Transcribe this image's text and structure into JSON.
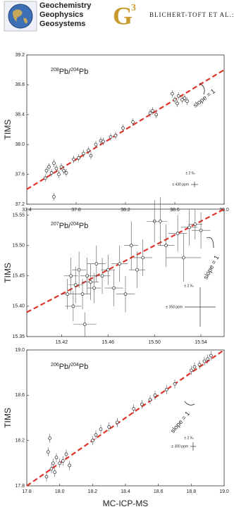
{
  "header": {
    "journal": [
      "Geochemistry",
      "Geophysics",
      "Geosystems"
    ],
    "logo_letter": "G",
    "logo_number": "3",
    "authors": "BLICHERT-TOFT ET AL.:"
  },
  "chart_data": [
    {
      "type": "scatter",
      "panel_label": [
        "208",
        "Pb/",
        "204",
        "Pb"
      ],
      "ylabel": "TIMS",
      "slope_label": "slope = 1",
      "reference_slope": 1,
      "line_color": "#e0342a",
      "marker_color": "#222",
      "x": [
        37.55,
        37.56,
        37.58,
        37.6,
        37.62,
        37.62,
        37.64,
        37.66,
        37.68,
        37.7,
        37.72,
        37.78,
        37.82,
        37.86,
        37.9,
        37.92,
        37.96,
        38.0,
        38.02,
        38.08,
        38.12,
        38.18,
        38.26,
        38.4,
        38.42,
        38.45,
        38.58,
        38.6,
        38.62,
        38.63,
        38.66,
        38.68,
        38.7
      ],
      "values": [
        37.55,
        37.65,
        37.7,
        37.62,
        37.75,
        37.3,
        37.68,
        37.6,
        37.7,
        37.65,
        37.62,
        37.8,
        37.82,
        37.88,
        37.92,
        37.85,
        38.0,
        38.05,
        38.04,
        38.1,
        38.12,
        38.22,
        38.3,
        38.42,
        38.45,
        38.4,
        38.68,
        38.6,
        38.55,
        38.65,
        38.6,
        38.62,
        38.58
      ],
      "xerr": 0.01,
      "yerr": 0.05,
      "key": {
        "permil": "± 2 ‰",
        "ppm": "± 430 ppm"
      },
      "xlim": [
        37.4,
        39.0
      ],
      "ylim": [
        37.2,
        39.2
      ],
      "xticks": [
        37.4,
        37.8,
        38.2,
        38.6,
        {
          "value": 39.0,
          "label": "39.0"
        }
      ],
      "yticks": [
        37.2,
        37.6,
        {
          "value": 38.0,
          "label": "38.0"
        },
        38.4,
        38.8,
        39.2
      ]
    },
    {
      "type": "scatter",
      "panel_label": [
        "207",
        "Pb/",
        "204",
        "Pb"
      ],
      "ylabel": "TIMS",
      "slope_label": "slope = 1",
      "reference_slope": 1,
      "line_color": "#e0342a",
      "marker_color": "#222",
      "x": [
        15.425,
        15.428,
        15.43,
        15.432,
        15.435,
        15.438,
        15.44,
        15.442,
        15.445,
        15.448,
        15.45,
        15.455,
        15.46,
        15.465,
        15.47,
        15.475,
        15.48,
        15.485,
        15.49,
        15.5,
        15.505,
        15.51,
        15.52,
        15.53,
        15.535,
        15.54,
        15.525
      ],
      "values": [
        15.42,
        15.45,
        15.4,
        15.435,
        15.46,
        15.42,
        15.37,
        15.45,
        15.44,
        15.43,
        15.47,
        15.45,
        15.46,
        15.43,
        15.47,
        15.42,
        15.5,
        15.46,
        15.48,
        15.54,
        15.54,
        15.5,
        15.52,
        15.53,
        15.535,
        15.525,
        15.48
      ],
      "xerr": [
        0.006,
        0.006,
        0.007,
        0.006,
        0.006,
        0.007,
        0.01,
        0.006,
        0.007,
        0.006,
        0.008,
        0.007,
        0.006,
        0.008,
        0.007,
        0.008,
        0.006,
        0.007,
        0.008,
        0.007,
        0.006,
        0.007,
        0.008,
        0.007,
        0.006,
        0.008,
        0.015
      ],
      "yerr": [
        0.025,
        0.03,
        0.025,
        0.03,
        0.03,
        0.025,
        0.02,
        0.03,
        0.03,
        0.025,
        0.03,
        0.03,
        0.025,
        0.03,
        0.03,
        0.03,
        0.04,
        0.03,
        0.03,
        0.035,
        0.04,
        0.035,
        0.03,
        0.03,
        0.025,
        0.03,
        0.04
      ],
      "key": {
        "permil": "± 2 ‰",
        "ppm": "± 350 ppm"
      },
      "xlim": [
        15.39,
        15.56
      ],
      "ylim": [
        15.35,
        15.56
      ],
      "xticks": [
        15.42,
        15.46,
        {
          "value": 15.5,
          "label": "15.50"
        },
        15.54
      ],
      "yticks": [
        15.35,
        {
          "value": 15.4,
          "label": "15.40"
        },
        15.45,
        {
          "value": 15.5,
          "label": "15.50"
        },
        15.55
      ]
    },
    {
      "type": "scatter",
      "panel_label": [
        "206",
        "Pb/",
        "204",
        "Pb"
      ],
      "ylabel": "TIMS",
      "xlabel": "MC-ICP-MS",
      "slope_label": "slope = 1",
      "reference_slope": 1,
      "line_color": "#e0342a",
      "marker_color": "#222",
      "x": [
        17.92,
        17.93,
        17.94,
        17.95,
        17.96,
        17.97,
        17.98,
        18.0,
        18.02,
        18.04,
        18.06,
        18.2,
        18.22,
        18.25,
        18.3,
        18.35,
        18.45,
        18.5,
        18.55,
        18.58,
        18.65,
        18.7,
        18.8,
        18.82,
        18.85,
        18.88,
        18.9,
        18.92
      ],
      "values": [
        17.88,
        18.1,
        18.22,
        17.95,
        18.0,
        17.92,
        18.05,
        18.0,
        18.02,
        18.08,
        17.98,
        18.2,
        18.25,
        18.3,
        18.32,
        18.36,
        18.48,
        18.52,
        18.56,
        18.6,
        18.65,
        18.7,
        18.82,
        18.85,
        18.87,
        18.9,
        18.92,
        18.95
      ],
      "xerr": 0.01,
      "yerr": 0.04,
      "key": {
        "permil": "± 2 ‰",
        "ppm": "± 300 ppm"
      },
      "xlim": [
        17.8,
        19.0
      ],
      "ylim": [
        17.8,
        19.0
      ],
      "xticks": [
        17.8,
        {
          "value": 18.0,
          "label": "18.0"
        },
        18.2,
        18.4,
        18.6,
        18.8,
        {
          "value": 19.0,
          "label": "19.0"
        }
      ],
      "yticks": [
        17.8,
        18.2,
        18.6,
        {
          "value": 19.0,
          "label": "19.0"
        }
      ]
    }
  ]
}
